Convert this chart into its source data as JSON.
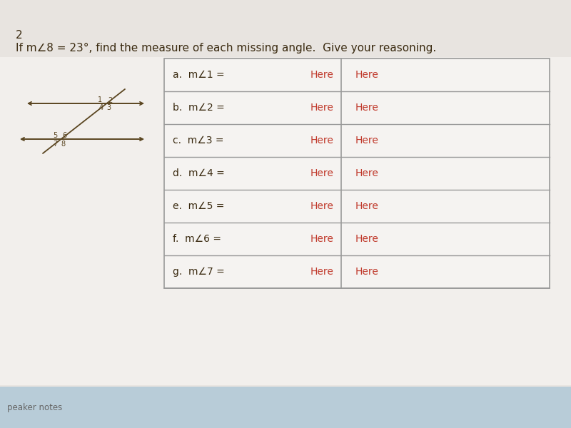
{
  "title_number": "2",
  "title_text": "If m∠8 = 23°, find the measure of each missing angle.  Give your reasoning.",
  "page_bg": "#e8e4e0",
  "content_bg": "#f2efec",
  "table_bg": "#f5f3f1",
  "table_border_color": "#999999",
  "rows": [
    {
      "label": "a.  m∠1 =",
      "col1": "Here",
      "col2": "Here"
    },
    {
      "label": "b.  m∠2 =",
      "col1": "Here",
      "col2": "Here"
    },
    {
      "label": "c.  m∠3 =",
      "col1": "Here",
      "col2": "Here"
    },
    {
      "label": "d.  m∠4 =",
      "col1": "Here",
      "col2": "Here"
    },
    {
      "label": "e.  m∠5 =",
      "col1": "Here",
      "col2": "Here"
    },
    {
      "label": "f.  m∠6 =",
      "col1": "Here",
      "col2": "Here"
    },
    {
      "label": "g.  m∠7 =",
      "col1": "Here",
      "col2": "Here"
    }
  ],
  "label_color": "#3a2a10",
  "here_color": "#c0392b",
  "speaker_notes_text": "peaker notes",
  "speaker_notes_color": "#666666",
  "speaker_bg": "#b8ccd8",
  "label_fontsize": 10,
  "here_fontsize": 10,
  "title_fontsize": 11,
  "diag_color": "#5a4520"
}
